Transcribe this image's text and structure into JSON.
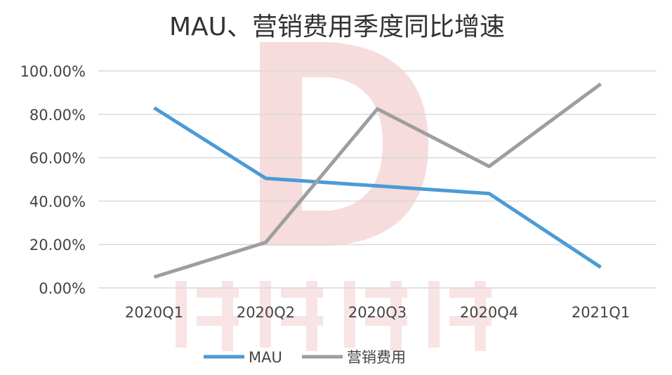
{
  "chart_data": {
    "type": "line",
    "title": "MAU、营销费用季度同比增速",
    "categories": [
      "2020Q1",
      "2020Q2",
      "2020Q3",
      "2020Q4",
      "2021Q1"
    ],
    "series": [
      {
        "name": "MAU",
        "values": [
          83.0,
          50.5,
          47.0,
          43.5,
          9.5
        ],
        "color": "#4a9bd6"
      },
      {
        "name": "营销费用",
        "values": [
          5.0,
          21.0,
          82.5,
          56.0,
          94.0
        ],
        "color": "#9e9e9e"
      }
    ],
    "ylim": [
      0,
      100
    ],
    "yticks": [
      "0.00%",
      "20.00%",
      "40.00%",
      "60.00%",
      "80.00%",
      "100.00%"
    ],
    "grid": true,
    "legend_position": "bottom",
    "watermark": "剁椒娱投"
  }
}
